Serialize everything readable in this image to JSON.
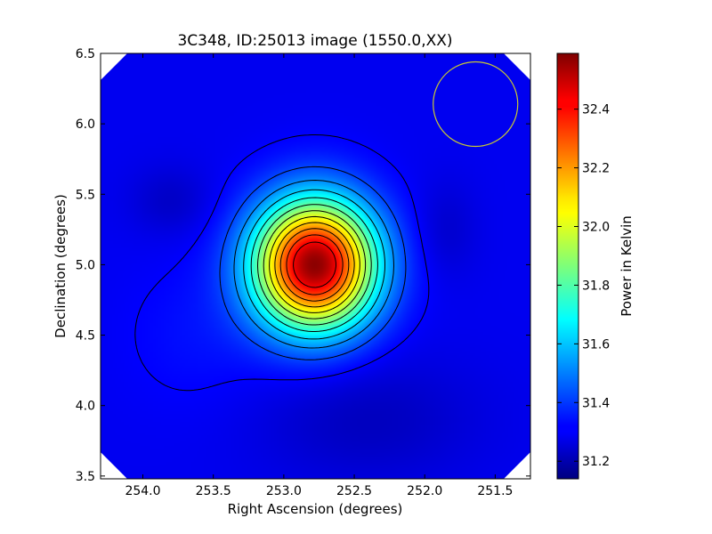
{
  "chart_data": {
    "type": "heatmap",
    "title": "3C348, ID:25013 image (1550.0,XX)",
    "xlabel": "Right Ascension (degrees)",
    "ylabel": "Declination (degrees)",
    "xlim": [
      254.3,
      251.25
    ],
    "ylim": [
      3.48,
      6.5
    ],
    "x_ticks": [
      "254.0",
      "253.5",
      "253.0",
      "252.5",
      "252.0",
      "251.5"
    ],
    "x_tick_values": [
      254.0,
      253.5,
      253.0,
      252.5,
      252.0,
      251.5
    ],
    "y_ticks": [
      "3.5",
      "4.0",
      "4.5",
      "5.0",
      "5.5",
      "6.0",
      "6.5"
    ],
    "y_tick_values": [
      3.5,
      4.0,
      4.5,
      5.0,
      5.5,
      6.0,
      6.5
    ],
    "colorbar": {
      "label": "Power in Kelvin",
      "range": [
        31.14,
        32.59
      ],
      "ticks": [
        "31.2",
        "31.4",
        "31.6",
        "31.8",
        "32.0",
        "32.2",
        "32.4"
      ],
      "tick_values": [
        31.2,
        31.4,
        31.6,
        31.8,
        32.0,
        32.2,
        32.4
      ],
      "colormap": "jet"
    },
    "peak": {
      "ra": 252.78,
      "dec": 5.0,
      "value": 32.57
    },
    "background_level": 31.3,
    "contour_levels": [
      31.32,
      31.42,
      31.52,
      31.62,
      31.72,
      31.82,
      31.92,
      32.02,
      32.12,
      32.22,
      32.32,
      32.42
    ],
    "beam_circle": {
      "ra": 251.64,
      "dec": 6.14,
      "radius_deg": 0.3,
      "color": "#c8c832"
    },
    "grid": false,
    "legend": "none"
  }
}
